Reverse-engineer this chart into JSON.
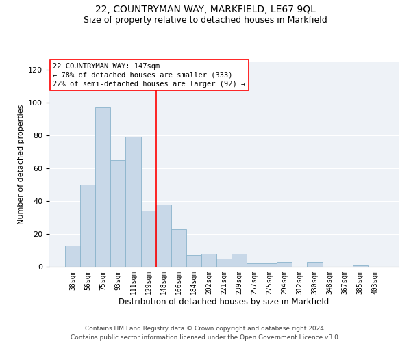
{
  "title": "22, COUNTRYMAN WAY, MARKFIELD, LE67 9QL",
  "subtitle": "Size of property relative to detached houses in Markfield",
  "xlabel": "Distribution of detached houses by size in Markfield",
  "ylabel": "Number of detached properties",
  "categories": [
    "38sqm",
    "56sqm",
    "75sqm",
    "93sqm",
    "111sqm",
    "129sqm",
    "148sqm",
    "166sqm",
    "184sqm",
    "202sqm",
    "221sqm",
    "239sqm",
    "257sqm",
    "275sqm",
    "294sqm",
    "312sqm",
    "330sqm",
    "348sqm",
    "367sqm",
    "385sqm",
    "403sqm"
  ],
  "values": [
    13,
    50,
    97,
    65,
    79,
    34,
    38,
    23,
    7,
    8,
    5,
    8,
    2,
    2,
    3,
    0,
    3,
    0,
    0,
    1,
    0
  ],
  "bar_color": "#c8d8e8",
  "bar_edge_color": "#8ab4cc",
  "annotation_box_text": "22 COUNTRYMAN WAY: 147sqm\n← 78% of detached houses are smaller (333)\n22% of semi-detached houses are larger (92) →",
  "annotation_box_color": "white",
  "annotation_box_edge_color": "red",
  "vline_color": "red",
  "vline_x_index": 6,
  "ylim": [
    0,
    125
  ],
  "yticks": [
    0,
    20,
    40,
    60,
    80,
    100,
    120
  ],
  "bg_color": "#eef2f7",
  "grid_color": "white",
  "footer": "Contains HM Land Registry data © Crown copyright and database right 2024.\nContains public sector information licensed under the Open Government Licence v3.0.",
  "title_fontsize": 10,
  "subtitle_fontsize": 9,
  "tick_fontsize": 7,
  "ylabel_fontsize": 8,
  "xlabel_fontsize": 8.5,
  "footer_fontsize": 6.5,
  "ann_fontsize": 7.5
}
